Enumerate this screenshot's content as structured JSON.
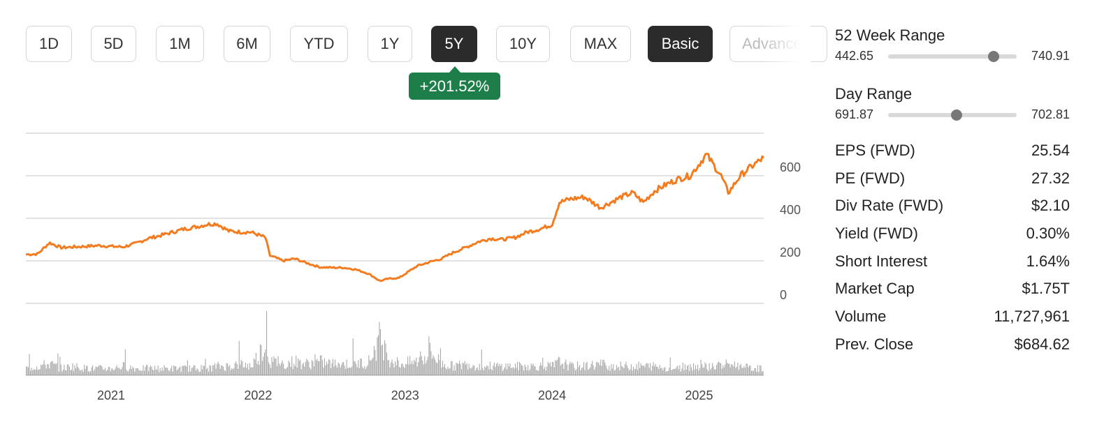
{
  "range_buttons": [
    {
      "label": "1D",
      "active": false
    },
    {
      "label": "5D",
      "active": false
    },
    {
      "label": "1M",
      "active": false
    },
    {
      "label": "6M",
      "active": false
    },
    {
      "label": "YTD",
      "active": false
    },
    {
      "label": "1Y",
      "active": false
    },
    {
      "label": "5Y",
      "active": true
    },
    {
      "label": "10Y",
      "active": false
    },
    {
      "label": "MAX",
      "active": false
    }
  ],
  "mode_buttons": [
    {
      "label": "Basic",
      "active": true
    },
    {
      "label": "Advanced",
      "active": false
    }
  ],
  "change_badge": "+201.52%",
  "week52_range": {
    "title": "52 Week Range",
    "low": "442.65",
    "high": "740.91",
    "current_fraction": 0.82
  },
  "day_range": {
    "title": "Day Range",
    "low": "691.87",
    "high": "702.81",
    "current_fraction": 0.53
  },
  "stats": [
    {
      "label": "EPS (FWD)",
      "value": "25.54"
    },
    {
      "label": "PE (FWD)",
      "value": "27.32"
    },
    {
      "label": "Div Rate (FWD)",
      "value": "$2.10"
    },
    {
      "label": "Yield (FWD)",
      "value": "0.30%"
    },
    {
      "label": "Short Interest",
      "value": "1.64%"
    },
    {
      "label": "Market Cap",
      "value": "$1.75T"
    },
    {
      "label": "Volume",
      "value": "11,727,961"
    },
    {
      "label": "Prev. Close",
      "value": "$684.62"
    }
  ],
  "colors": {
    "line": "#f47c20",
    "badge": "#1e7e4a",
    "volume": "#aaaaaa",
    "grid": "#d0d0d0"
  },
  "chart_data": {
    "type": "line",
    "x_start": "2020-06-01",
    "x_end": "2025-06-10",
    "xlim": [
      2020.42,
      2025.44
    ],
    "ylim": [
      0,
      800
    ],
    "y_ticks": [
      0,
      200,
      400,
      600
    ],
    "x_ticks": [
      {
        "label": "2021",
        "value": 2021
      },
      {
        "label": "2022",
        "value": 2022
      },
      {
        "label": "2023",
        "value": 2023
      },
      {
        "label": "2024",
        "value": 2024
      },
      {
        "label": "2025",
        "value": 2025
      }
    ],
    "grid": true,
    "price_series": [
      [
        2020.42,
        230
      ],
      [
        2020.5,
        232
      ],
      [
        2020.58,
        285
      ],
      [
        2020.66,
        262
      ],
      [
        2020.74,
        265
      ],
      [
        2020.83,
        268
      ],
      [
        2020.92,
        272
      ],
      [
        2021.0,
        268
      ],
      [
        2021.08,
        265
      ],
      [
        2021.17,
        282
      ],
      [
        2021.25,
        305
      ],
      [
        2021.33,
        318
      ],
      [
        2021.42,
        335
      ],
      [
        2021.5,
        350
      ],
      [
        2021.58,
        360
      ],
      [
        2021.66,
        372
      ],
      [
        2021.72,
        375
      ],
      [
        2021.8,
        340
      ],
      [
        2021.88,
        335
      ],
      [
        2021.95,
        335
      ],
      [
        2022.05,
        310
      ],
      [
        2022.08,
        225
      ],
      [
        2022.17,
        200
      ],
      [
        2022.25,
        210
      ],
      [
        2022.33,
        190
      ],
      [
        2022.42,
        170
      ],
      [
        2022.5,
        168
      ],
      [
        2022.58,
        168
      ],
      [
        2022.66,
        160
      ],
      [
        2022.75,
        140
      ],
      [
        2022.83,
        105
      ],
      [
        2022.88,
        115
      ],
      [
        2022.96,
        120
      ],
      [
        2023.08,
        175
      ],
      [
        2023.17,
        195
      ],
      [
        2023.25,
        210
      ],
      [
        2023.33,
        240
      ],
      [
        2023.42,
        265
      ],
      [
        2023.5,
        290
      ],
      [
        2023.58,
        305
      ],
      [
        2023.66,
        300
      ],
      [
        2023.75,
        310
      ],
      [
        2023.83,
        335
      ],
      [
        2023.92,
        350
      ],
      [
        2024.0,
        370
      ],
      [
        2024.05,
        475
      ],
      [
        2024.12,
        490
      ],
      [
        2024.22,
        500
      ],
      [
        2024.33,
        450
      ],
      [
        2024.4,
        475
      ],
      [
        2024.47,
        500
      ],
      [
        2024.55,
        520
      ],
      [
        2024.62,
        475
      ],
      [
        2024.7,
        530
      ],
      [
        2024.78,
        560
      ],
      [
        2024.86,
        585
      ],
      [
        2024.94,
        600
      ],
      [
        2025.05,
        700
      ],
      [
        2025.1,
        650
      ],
      [
        2025.15,
        600
      ],
      [
        2025.2,
        520
      ],
      [
        2025.28,
        600
      ],
      [
        2025.35,
        640
      ],
      [
        2025.44,
        685
      ]
    ],
    "volume_series": [
      [
        2020.42,
        3
      ],
      [
        2020.5,
        4
      ],
      [
        2020.58,
        5
      ],
      [
        2020.66,
        3
      ],
      [
        2020.74,
        4
      ],
      [
        2020.83,
        3
      ],
      [
        2020.92,
        3
      ],
      [
        2021.0,
        3
      ],
      [
        2021.08,
        4
      ],
      [
        2021.17,
        3
      ],
      [
        2021.25,
        3
      ],
      [
        2021.33,
        3
      ],
      [
        2021.42,
        3
      ],
      [
        2021.5,
        3
      ],
      [
        2021.58,
        3
      ],
      [
        2021.66,
        3
      ],
      [
        2021.72,
        4
      ],
      [
        2021.8,
        4
      ],
      [
        2021.88,
        5
      ],
      [
        2021.95,
        4
      ],
      [
        2022.05,
        14
      ],
      [
        2022.08,
        6
      ],
      [
        2022.17,
        5
      ],
      [
        2022.25,
        6
      ],
      [
        2022.33,
        5
      ],
      [
        2022.42,
        6
      ],
      [
        2022.5,
        5
      ],
      [
        2022.58,
        5
      ],
      [
        2022.66,
        5
      ],
      [
        2022.75,
        6
      ],
      [
        2022.83,
        17
      ],
      [
        2022.88,
        8
      ],
      [
        2022.96,
        5
      ],
      [
        2023.08,
        6
      ],
      [
        2023.17,
        10
      ],
      [
        2023.25,
        5
      ],
      [
        2023.33,
        4
      ],
      [
        2023.42,
        5
      ],
      [
        2023.5,
        4
      ],
      [
        2023.58,
        4
      ],
      [
        2023.66,
        4
      ],
      [
        2023.75,
        4
      ],
      [
        2023.83,
        4
      ],
      [
        2023.92,
        4
      ],
      [
        2024.0,
        4
      ],
      [
        2024.05,
        6
      ],
      [
        2024.12,
        4
      ],
      [
        2024.22,
        4
      ],
      [
        2024.33,
        5
      ],
      [
        2024.4,
        4
      ],
      [
        2024.47,
        4
      ],
      [
        2024.55,
        4
      ],
      [
        2024.62,
        4
      ],
      [
        2024.7,
        4
      ],
      [
        2024.78,
        3
      ],
      [
        2024.86,
        3
      ],
      [
        2024.94,
        4
      ],
      [
        2025.05,
        4
      ],
      [
        2025.1,
        4
      ],
      [
        2025.15,
        4
      ],
      [
        2025.2,
        5
      ],
      [
        2025.28,
        4
      ],
      [
        2025.35,
        3
      ],
      [
        2025.44,
        3
      ]
    ],
    "volume_ylim": [
      0,
      20
    ]
  }
}
